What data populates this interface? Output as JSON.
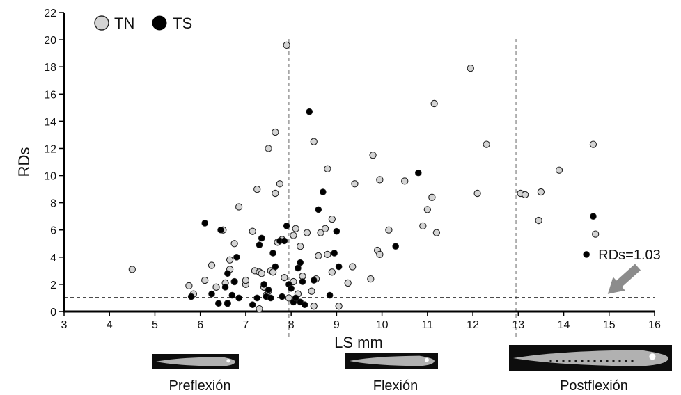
{
  "chart_data": {
    "type": "scatter",
    "title": "",
    "xlabel": "LS mm",
    "ylabel": "RDs",
    "xlim": [
      3,
      16
    ],
    "ylim": [
      0,
      22
    ],
    "x_ticks": [
      3,
      4,
      5,
      6,
      7,
      8,
      9,
      10,
      11,
      12,
      13,
      14,
      15,
      16
    ],
    "y_ticks": [
      0,
      2,
      4,
      6,
      8,
      10,
      12,
      14,
      16,
      18,
      20,
      22
    ],
    "grid": false,
    "legend_position": "top-left",
    "series": [
      {
        "name": "TN",
        "color": "#d4d4d4",
        "points": [
          [
            4.5,
            3.1
          ],
          [
            5.75,
            1.9
          ],
          [
            5.85,
            1.3
          ],
          [
            6.1,
            2.3
          ],
          [
            6.25,
            3.4
          ],
          [
            6.35,
            1.8
          ],
          [
            6.5,
            6.0
          ],
          [
            6.55,
            2.1
          ],
          [
            6.6,
            0.6
          ],
          [
            6.65,
            3.1
          ],
          [
            6.65,
            3.8
          ],
          [
            6.75,
            2.2
          ],
          [
            6.75,
            5.0
          ],
          [
            6.85,
            7.7
          ],
          [
            7.0,
            2.0
          ],
          [
            7.0,
            2.3
          ],
          [
            7.15,
            5.9
          ],
          [
            7.2,
            3.0
          ],
          [
            7.25,
            9.0
          ],
          [
            7.3,
            0.2
          ],
          [
            7.3,
            2.9
          ],
          [
            7.35,
            2.8
          ],
          [
            7.4,
            1.8
          ],
          [
            7.45,
            1.2
          ],
          [
            7.5,
            12.0
          ],
          [
            7.5,
            1.5
          ],
          [
            7.55,
            3.0
          ],
          [
            7.6,
            2.9
          ],
          [
            7.65,
            13.2
          ],
          [
            7.65,
            8.7
          ],
          [
            7.7,
            5.1
          ],
          [
            7.75,
            9.4
          ],
          [
            7.8,
            5.3
          ],
          [
            7.85,
            2.5
          ],
          [
            7.9,
            19.6
          ],
          [
            7.95,
            1.0
          ],
          [
            8.05,
            2.2
          ],
          [
            8.05,
            5.6
          ],
          [
            8.1,
            6.1
          ],
          [
            8.15,
            1.3
          ],
          [
            8.2,
            4.8
          ],
          [
            8.25,
            2.6
          ],
          [
            8.35,
            5.8
          ],
          [
            8.45,
            1.5
          ],
          [
            8.5,
            12.5
          ],
          [
            8.5,
            0.4
          ],
          [
            8.55,
            2.4
          ],
          [
            8.6,
            4.1
          ],
          [
            8.65,
            5.8
          ],
          [
            8.75,
            6.1
          ],
          [
            8.8,
            10.5
          ],
          [
            8.8,
            4.2
          ],
          [
            8.9,
            2.9
          ],
          [
            8.9,
            6.8
          ],
          [
            9.05,
            0.4
          ],
          [
            9.25,
            2.1
          ],
          [
            9.35,
            3.3
          ],
          [
            9.4,
            9.4
          ],
          [
            9.75,
            2.4
          ],
          [
            9.8,
            11.5
          ],
          [
            9.9,
            4.5
          ],
          [
            9.95,
            4.2
          ],
          [
            9.95,
            9.7
          ],
          [
            10.15,
            6.0
          ],
          [
            10.5,
            9.6
          ],
          [
            10.9,
            6.3
          ],
          [
            11.0,
            7.5
          ],
          [
            11.1,
            8.4
          ],
          [
            11.15,
            15.3
          ],
          [
            11.2,
            5.8
          ],
          [
            11.95,
            17.9
          ],
          [
            12.1,
            8.7
          ],
          [
            12.3,
            12.3
          ],
          [
            13.05,
            8.7
          ],
          [
            13.15,
            8.6
          ],
          [
            13.45,
            6.7
          ],
          [
            13.5,
            8.8
          ],
          [
            13.9,
            10.4
          ],
          [
            14.65,
            12.3
          ],
          [
            14.7,
            5.7
          ]
        ]
      },
      {
        "name": "TS",
        "color": "#000000",
        "points": [
          [
            5.8,
            1.1
          ],
          [
            6.1,
            6.5
          ],
          [
            6.25,
            1.3
          ],
          [
            6.4,
            0.6
          ],
          [
            6.45,
            6.0
          ],
          [
            6.55,
            1.8
          ],
          [
            6.6,
            0.6
          ],
          [
            6.6,
            2.8
          ],
          [
            6.7,
            1.2
          ],
          [
            6.75,
            2.2
          ],
          [
            6.8,
            4.0
          ],
          [
            6.85,
            1.0
          ],
          [
            7.15,
            0.5
          ],
          [
            7.25,
            1.0
          ],
          [
            7.3,
            4.9
          ],
          [
            7.35,
            5.4
          ],
          [
            7.4,
            2.0
          ],
          [
            7.45,
            1.1
          ],
          [
            7.5,
            1.6
          ],
          [
            7.55,
            1.0
          ],
          [
            7.6,
            4.3
          ],
          [
            7.65,
            3.3
          ],
          [
            7.75,
            5.2
          ],
          [
            7.8,
            1.1
          ],
          [
            7.85,
            5.2
          ],
          [
            7.9,
            6.3
          ],
          [
            7.95,
            2.0
          ],
          [
            8.0,
            1.7
          ],
          [
            8.05,
            0.7
          ],
          [
            8.1,
            1.0
          ],
          [
            8.15,
            3.2
          ],
          [
            8.2,
            0.7
          ],
          [
            8.2,
            3.6
          ],
          [
            8.25,
            2.2
          ],
          [
            8.3,
            0.5
          ],
          [
            8.4,
            14.7
          ],
          [
            8.5,
            2.3
          ],
          [
            8.6,
            7.5
          ],
          [
            8.7,
            8.8
          ],
          [
            8.85,
            1.2
          ],
          [
            8.95,
            4.3
          ],
          [
            9.0,
            5.9
          ],
          [
            9.05,
            3.3
          ],
          [
            10.3,
            4.8
          ],
          [
            10.8,
            10.2
          ],
          [
            14.5,
            4.2
          ],
          [
            14.65,
            7.0
          ]
        ]
      }
    ],
    "reference_line": {
      "y": 1.03,
      "style": "dashed"
    },
    "stage_boundaries": [
      7.95,
      12.95
    ],
    "annotations": [
      {
        "text": "RDs=1.03",
        "points_to": [
          15.0,
          1.5
        ]
      }
    ],
    "stages": [
      {
        "label": "Preflexión",
        "image": "preflexion-larva"
      },
      {
        "label": "Flexión",
        "image": "flexion-larva"
      },
      {
        "label": "Postflexión",
        "image": "postflexion-larva"
      }
    ]
  }
}
